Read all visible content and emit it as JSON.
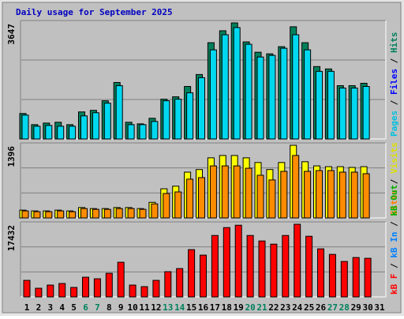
{
  "chart_data": {
    "type": "bar",
    "title": "Daily usage for September 2025",
    "categories": [
      "1",
      "2",
      "3",
      "4",
      "5",
      "6",
      "7",
      "8",
      "9",
      "10",
      "11",
      "12",
      "13",
      "14",
      "15",
      "16",
      "17",
      "18",
      "19",
      "20",
      "21",
      "22",
      "23",
      "24",
      "25",
      "26",
      "27",
      "28",
      "29",
      "30",
      "31"
    ],
    "category_colors": [
      "#000000",
      "#000000",
      "#000000",
      "#000000",
      "#000000",
      "#00805c",
      "#00805c",
      "#000000",
      "#000000",
      "#000000",
      "#000000",
      "#000000",
      "#00805c",
      "#00805c",
      "#000000",
      "#000000",
      "#000000",
      "#000000",
      "#000000",
      "#00805c",
      "#00805c",
      "#000000",
      "#000000",
      "#000000",
      "#000000",
      "#000000",
      "#00805c",
      "#00805c",
      "#000000",
      "#000000",
      "#000000"
    ],
    "panels": [
      {
        "max_label": "3647",
        "ymax": 3647,
        "labels": [
          {
            "text": "Pages",
            "color": "#00c0e0"
          },
          {
            "text": " / ",
            "color": "#000000"
          },
          {
            "text": "Files",
            "color": "#0000ff"
          },
          {
            "text": " / ",
            "color": "#000000"
          },
          {
            "text": "Hits",
            "color": "#00805c"
          }
        ],
        "series": [
          {
            "name": "Hits",
            "color": "#00805c",
            "values": [
              800,
              450,
              500,
              525,
              450,
              850,
              900,
              1200,
              1775,
              525,
              475,
              650,
              1250,
              1325,
              1650,
              2025,
              3025,
              3400,
              3647,
              3050,
              2725,
              2675,
              2900,
              3525,
              3025,
              2275,
              2200,
              1675,
              1675,
              1750,
              null
            ]
          },
          {
            "name": "Pages",
            "color": "#00d8f0",
            "values": [
              750,
              400,
              425,
              400,
              400,
              725,
              825,
              1125,
              1675,
              450,
              450,
              550,
              1200,
              1250,
              1450,
              1925,
              2800,
              3275,
              3500,
              2975,
              2575,
              2625,
              2850,
              3275,
              2800,
              2125,
              2125,
              1600,
              1600,
              1650,
              null
            ]
          }
        ]
      },
      {
        "max_label": "1396",
        "ymax": 1396,
        "labels": [
          {
            "text": "Sites",
            "color": "#ff8000"
          },
          {
            "text": " / ",
            "color": "#000000"
          },
          {
            "text": "Visits",
            "color": "#e0e000"
          }
        ],
        "series": [
          {
            "name": "Visits",
            "color": "#ffff00",
            "values": [
              150,
              135,
              135,
              150,
              135,
              200,
              180,
              180,
              200,
              200,
              180,
              300,
              560,
              610,
              880,
              930,
              1155,
              1200,
              1200,
              1155,
              1065,
              930,
              1065,
              1396,
              1080,
              1000,
              985,
              985,
              970,
              985,
              null
            ]
          },
          {
            "name": "Sites",
            "color": "#ff8c00",
            "values": [
              135,
              120,
              120,
              135,
              120,
              180,
              165,
              165,
              180,
              180,
              165,
              270,
              470,
              500,
              745,
              775,
              1000,
              1000,
              1000,
              955,
              820,
              730,
              895,
              1200,
              895,
              910,
              910,
              880,
              880,
              850,
              null
            ]
          }
        ]
      },
      {
        "max_label": "17432",
        "ymax": 17432,
        "labels": [
          {
            "text": "kB F",
            "color": "#ff0000"
          },
          {
            "text": " / ",
            "color": "#000000"
          },
          {
            "text": "kB In",
            "color": "#0080ff"
          },
          {
            "text": " / ",
            "color": "#000000"
          },
          {
            "text": "kB Out",
            "color": "#00b000"
          }
        ],
        "series": [
          {
            "name": "kB F",
            "color": "#ff0000",
            "values": [
              3970,
              2080,
              2835,
              3215,
              2270,
              4725,
              4350,
              5670,
              8315,
              2835,
              2460,
              3970,
              6050,
              6800,
              11340,
              10020,
              14740,
              16630,
              17200,
              14740,
              13420,
              12660,
              14740,
              17432,
              14550,
              11530,
              10200,
              8500,
              9450,
              9260,
              null
            ]
          }
        ]
      }
    ]
  }
}
